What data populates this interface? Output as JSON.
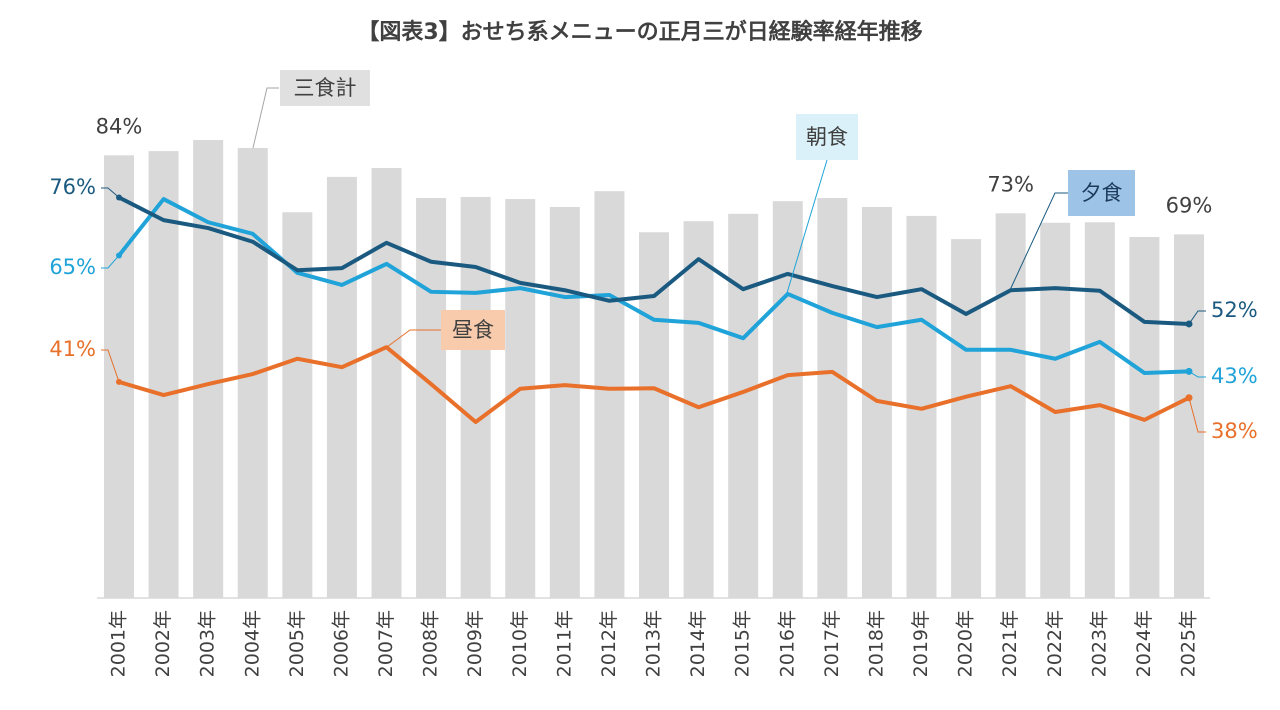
{
  "chart_data": {
    "type": "bar-line",
    "title": "【図表3】おせち系メニューの正月三が日経験率経年推移",
    "categories": [
      "2001年",
      "2002年",
      "2003年",
      "2004年",
      "2005年",
      "2006年",
      "2007年",
      "2008年",
      "2009年",
      "2010年",
      "2011年",
      "2012年",
      "2013年",
      "2014年",
      "2015年",
      "2016年",
      "2017年",
      "2018年",
      "2019年",
      "2020年",
      "2021年",
      "2022年",
      "2023年",
      "2024年",
      "2025年"
    ],
    "ylim": [
      0,
      100
    ],
    "series": [
      {
        "name": "三食計",
        "type": "bar",
        "color": "#d9d9d9",
        "label_color": "#e0e0e0",
        "values": [
          84,
          84.8,
          86.9,
          85.4,
          73.2,
          79.9,
          81.6,
          75.9,
          76.1,
          75.7,
          74.2,
          77.2,
          69.4,
          71.5,
          72.9,
          75.3,
          75.9,
          74.2,
          72.5,
          68.1,
          73,
          71.2,
          71.3,
          68.5,
          69
        ],
        "value_labels": [
          "84%",
          null,
          null,
          null,
          null,
          null,
          null,
          null,
          null,
          null,
          null,
          null,
          null,
          null,
          null,
          null,
          null,
          null,
          null,
          null,
          "73%",
          null,
          null,
          null,
          "69%"
        ]
      },
      {
        "name": "朝食",
        "type": "line",
        "color": "#1fa3d8",
        "label_color": "#dbf1fa",
        "values": [
          65,
          75.7,
          71.3,
          69.1,
          61.7,
          59.4,
          63.4,
          58.1,
          57.9,
          58.8,
          57.1,
          57.5,
          52.8,
          52.2,
          49.3,
          57.7,
          54.1,
          51.4,
          52.8,
          47.1,
          47.1,
          45.4,
          48.6,
          42.7,
          43
        ],
        "value_labels": [
          "65%",
          null,
          null,
          null,
          null,
          null,
          null,
          null,
          null,
          null,
          null,
          null,
          null,
          null,
          null,
          null,
          null,
          null,
          null,
          null,
          null,
          null,
          null,
          null,
          "43%"
        ]
      },
      {
        "name": "昼食",
        "type": "line",
        "color": "#e8702a",
        "label_color": "#f8cbad",
        "values": [
          41,
          38.5,
          40.6,
          42.5,
          45.4,
          43.8,
          47.6,
          40.6,
          33.4,
          39.7,
          40.4,
          39.7,
          39.8,
          36.2,
          39.1,
          42.3,
          42.9,
          37.4,
          35.9,
          38.2,
          40.2,
          35.3,
          36.6,
          33.8,
          38
        ],
        "value_labels": [
          "41%",
          null,
          null,
          null,
          null,
          null,
          null,
          null,
          null,
          null,
          null,
          null,
          null,
          null,
          null,
          null,
          null,
          null,
          null,
          null,
          null,
          null,
          null,
          null,
          "38%"
        ]
      },
      {
        "name": "夕食",
        "type": "line",
        "color": "#1b5a80",
        "label_color": "#9dc3e6",
        "values": [
          76,
          71.7,
          70.2,
          67.6,
          62.2,
          62.6,
          67.4,
          63.8,
          62.8,
          59.8,
          58.4,
          56.4,
          57.3,
          64.3,
          58.6,
          61.5,
          59.2,
          57.1,
          58.6,
          53.9,
          58.4,
          58.8,
          58.3,
          52.4,
          52
        ],
        "value_labels": [
          "76%",
          null,
          null,
          null,
          null,
          null,
          null,
          null,
          null,
          null,
          null,
          null,
          null,
          null,
          null,
          null,
          null,
          null,
          null,
          null,
          null,
          null,
          null,
          null,
          "52%"
        ]
      }
    ]
  }
}
